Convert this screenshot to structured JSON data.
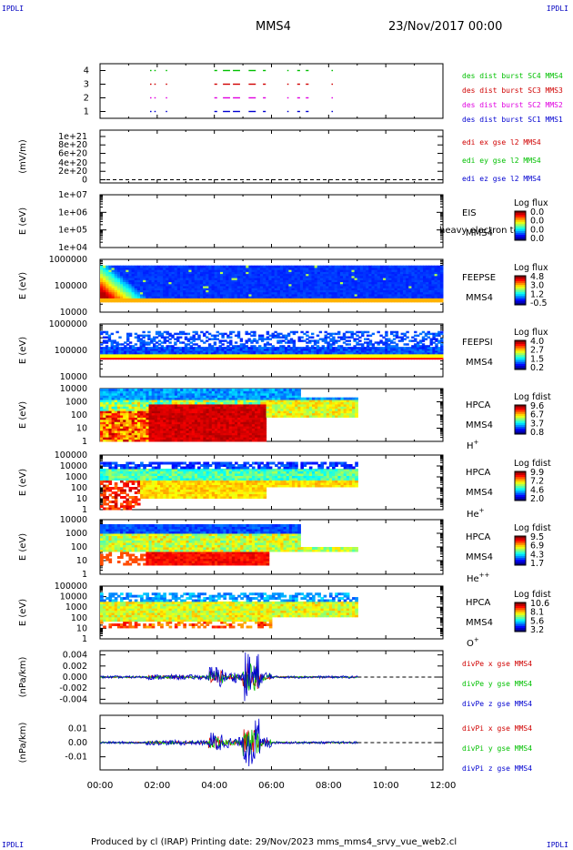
{
  "corners": {
    "label": "IPDLI"
  },
  "header": {
    "spacecraft": "MMS4",
    "date": "23/Nov/2017 00:00"
  },
  "footer": {
    "text": "Produced by cl (IRAP)   Printing date: 29/Nov/2023   mms_mms4_srvy_vue_web2.cl"
  },
  "colors": {
    "ion_red": "#d00000",
    "ion_green": "#00c000",
    "ion_blue": "#0000d0",
    "ion_magenta": "#e000e0"
  },
  "chart_data": [
    {
      "type": "scatter",
      "panel": "burst",
      "yticks": [
        "1",
        "2",
        "3",
        "4"
      ],
      "series": [
        {
          "name": "des dist burst SC1 MMS1",
          "color": "#0000d0",
          "y": 1
        },
        {
          "name": "des dist burst SC2 MMS2",
          "color": "#e000e0",
          "y": 2
        },
        {
          "name": "des dist burst SC3 MMS3",
          "color": "#d00000",
          "y": 3
        },
        {
          "name": "des dist burst SC4 MMS4",
          "color": "#00c000",
          "y": 4
        }
      ],
      "burst_intervals_hours": [
        [
          1.75,
          1.8
        ],
        [
          1.9,
          1.95
        ],
        [
          2.3,
          2.35
        ],
        [
          4.0,
          4.1
        ],
        [
          4.3,
          4.55
        ],
        [
          4.65,
          4.9
        ],
        [
          5.2,
          5.45
        ],
        [
          5.7,
          5.8
        ],
        [
          6.55,
          6.6
        ],
        [
          6.9,
          7.0
        ],
        [
          7.2,
          7.3
        ],
        [
          8.1,
          8.15
        ]
      ]
    },
    {
      "type": "line",
      "panel": "edi",
      "ylabel": "(mV/m)",
      "yticks": [
        "0",
        "2e+20",
        "4e+20",
        "6e+20",
        "8e+20",
        "1e+21"
      ],
      "series": [
        {
          "name": "edi ex gse l2 MMS4",
          "color": "#d00000"
        },
        {
          "name": "edi ey gse l2 MMS4",
          "color": "#00c000"
        },
        {
          "name": "edi ez gse l2 MMS4",
          "color": "#0000d0"
        }
      ]
    },
    {
      "type": "heatmap",
      "panel": "eis",
      "ylabel": "E (eV)",
      "yticks": [
        "1e+04",
        "1e+05",
        "1e+06",
        "1e+07"
      ],
      "side_labels": [
        "EIS",
        "MMS4"
      ],
      "overlay_text": "heavy electron to",
      "colorbar": {
        "title": "Log flux",
        "ticks": [
          "0.0",
          "0.0",
          "0.0",
          "0.0"
        ]
      }
    },
    {
      "type": "heatmap",
      "panel": "feepse",
      "ylabel": "E (eV)",
      "yticks": [
        "10000",
        "100000",
        "1000000"
      ],
      "side_labels": [
        "FEEPSE",
        "MMS4"
      ],
      "colorbar": {
        "title": "Log flux",
        "ticks": [
          "4.8",
          "3.0",
          "1.2",
          "-0.5"
        ]
      }
    },
    {
      "type": "heatmap",
      "panel": "feepsi",
      "ylabel": "E (eV)",
      "yticks": [
        "10000",
        "100000",
        "1000000"
      ],
      "side_labels": [
        "FEEPSI",
        "MMS4"
      ],
      "colorbar": {
        "title": "Log flux",
        "ticks": [
          "4.0",
          "2.7",
          "1.5",
          "0.2"
        ]
      }
    },
    {
      "type": "heatmap",
      "panel": "hpca_h",
      "ylabel": "E (eV)",
      "yticks": [
        "1",
        "10",
        "100",
        "1000",
        "10000"
      ],
      "side_labels": [
        "HPCA",
        "MMS4"
      ],
      "species": "H",
      "species_sup": "+",
      "colorbar": {
        "title": "Log fdist",
        "ticks": [
          "9.6",
          "6.7",
          "3.7",
          "0.8"
        ]
      }
    },
    {
      "type": "heatmap",
      "panel": "hpca_he",
      "ylabel": "E (eV)",
      "yticks": [
        "1",
        "10",
        "100",
        "1000",
        "10000",
        "100000"
      ],
      "side_labels": [
        "HPCA",
        "MMS4"
      ],
      "species": "He",
      "species_sup": "+",
      "colorbar": {
        "title": "Log fdist",
        "ticks": [
          "9.9",
          "7.2",
          "4.6",
          "2.0"
        ]
      }
    },
    {
      "type": "heatmap",
      "panel": "hpca_hepp",
      "ylabel": "E (eV)",
      "yticks": [
        "1",
        "10",
        "100",
        "1000",
        "10000"
      ],
      "side_labels": [
        "HPCA",
        "MMS4"
      ],
      "species": "He",
      "species_sup": "++",
      "colorbar": {
        "title": "Log fdist",
        "ticks": [
          "9.5",
          "6.9",
          "4.3",
          "1.7"
        ]
      }
    },
    {
      "type": "heatmap",
      "panel": "hpca_o",
      "ylabel": "E (eV)",
      "yticks": [
        "1",
        "10",
        "100",
        "1000",
        "10000",
        "100000"
      ],
      "side_labels": [
        "HPCA",
        "MMS4"
      ],
      "species": "O",
      "species_sup": "+",
      "colorbar": {
        "title": "Log fdist",
        "ticks": [
          "10.6",
          "8.1",
          "5.6",
          "3.2"
        ]
      }
    },
    {
      "type": "line",
      "panel": "divpe",
      "ylabel": "(nPa/km)",
      "yticks": [
        "-0.004",
        "-0.002",
        "0.000",
        "0.002",
        "0.004"
      ],
      "ylim": [
        -0.0048,
        0.0048
      ],
      "series": [
        {
          "name": "divPe x gse MMS4",
          "color": "#d00000"
        },
        {
          "name": "divPe y gse MMS4",
          "color": "#00c000"
        },
        {
          "name": "divPe z gse MMS4",
          "color": "#0000d0"
        }
      ]
    },
    {
      "type": "line",
      "panel": "divpi",
      "ylabel": "(nPa/km)",
      "yticks": [
        "-0.01",
        "0.00",
        "0.01"
      ],
      "ylim": [
        -0.016,
        0.016
      ],
      "series": [
        {
          "name": "divPi x gse MMS4",
          "color": "#d00000"
        },
        {
          "name": "divPi y gse MMS4",
          "color": "#00c000"
        },
        {
          "name": "divPi z gse MMS4",
          "color": "#0000d0"
        }
      ]
    }
  ],
  "time_axis": {
    "ticks": [
      "00:00",
      "02:00",
      "04:00",
      "06:00",
      "08:00",
      "10:00",
      "12:00"
    ],
    "range_hours": [
      0,
      12
    ]
  }
}
